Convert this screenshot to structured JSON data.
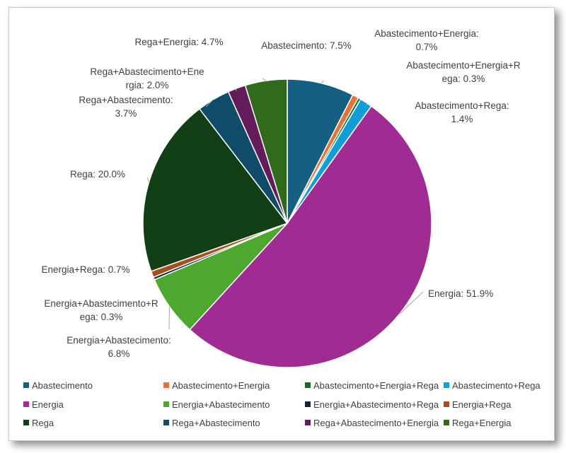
{
  "chart_data": {
    "type": "pie",
    "title": "",
    "slices": [
      {
        "name": "Abastecimento",
        "value": 7.5,
        "label_lines": [
          "Abastecimento: 7.5%"
        ],
        "color": "#156082"
      },
      {
        "name": "Abastecimento+Energia",
        "value": 0.7,
        "label_lines": [
          "Abastecimento+Energia:",
          "0.7%"
        ],
        "color": "#E97132"
      },
      {
        "name": "Abastecimento+Energia+Rega",
        "value": 0.3,
        "label_lines": [
          "Abastecimento+Energia+R",
          "ega: 0.3%"
        ],
        "color": "#196B24"
      },
      {
        "name": "Abastecimento+Rega",
        "value": 1.4,
        "label_lines": [
          "Abastecimento+Rega:",
          "1.4%"
        ],
        "color": "#0F9ED5"
      },
      {
        "name": "Energia",
        "value": 51.9,
        "label_lines": [
          "Energia: 51.9%"
        ],
        "color": "#A02B93"
      },
      {
        "name": "Energia+Abastecimento",
        "value": 6.8,
        "label_lines": [
          "Energia+Abastecimento:",
          "6.8%"
        ],
        "color": "#4EA72E"
      },
      {
        "name": "Energia+Abastecimento+Rega",
        "value": 0.3,
        "label_lines": [
          "Energia+Abastecimento+R",
          "ega: 0.3%"
        ],
        "color": "#0E2841"
      },
      {
        "name": "Energia+Rega",
        "value": 0.7,
        "label_lines": [
          "Energia+Rega: 0.7%"
        ],
        "color": "#A5501B"
      },
      {
        "name": "Rega",
        "value": 20.0,
        "label_lines": [
          "Rega: 20.0%"
        ],
        "color": "#133F16"
      },
      {
        "name": "Rega+Abastecimento",
        "value": 3.7,
        "label_lines": [
          "Rega+Abastecimento:",
          "3.7%"
        ],
        "color": "#0E4C6A"
      },
      {
        "name": "Rega+Abastecimento+Energia",
        "value": 2.0,
        "label_lines": [
          "Rega+Abastecimento+Ene",
          "rgia: 2.0%"
        ],
        "color": "#631B5A"
      },
      {
        "name": "Rega+Energia",
        "value": 4.7,
        "label_lines": [
          "Rega+Energia: 4.7%"
        ],
        "color": "#2F6A1D"
      }
    ],
    "legend": {
      "placement": "bottom",
      "columns": 4,
      "entries": [
        "Abastecimento",
        "Abastecimento+Energia",
        "Abastecimento+Energia+Rega",
        "Abastecimento+Rega",
        "Energia",
        "Energia+Abastecimento",
        "Energia+Abastecimento+Rega",
        "Energia+Rega",
        "Rega",
        "Rega+Abastecimento",
        "Rega+Abastecimento+Energia",
        "Rega+Energia"
      ]
    }
  }
}
